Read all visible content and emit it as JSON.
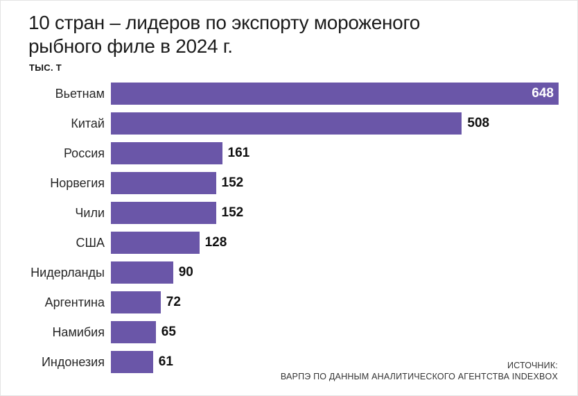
{
  "page": {
    "title_line1": "10 стран – лидеров по экспорту мороженого",
    "title_line2": "рыбного филе в 2024 г.",
    "unit_label": "тыс. т",
    "source_line1": "ИСТОЧНИК:",
    "source_line2": "ВАРПЭ ПО ДАННЫМ АНАЛИТИЧЕСКОГО АГЕНТСТВА INDEXBOX"
  },
  "chart_data": {
    "type": "bar",
    "orientation": "horizontal",
    "title": "10 стран – лидеров по экспорту мороженого рыбного филе в 2024 г.",
    "unit": "тыс. т",
    "categories": [
      "Вьетнам",
      "Китай",
      "Россия",
      "Норвегия",
      "Чили",
      "США",
      "Нидерланды",
      "Аргентина",
      "Намибия",
      "Индонезия"
    ],
    "values": [
      648,
      508,
      161,
      152,
      152,
      128,
      90,
      72,
      65,
      61
    ],
    "xlim": [
      0,
      648
    ],
    "grid": false,
    "legend": false,
    "bar_color": "#6a56a8",
    "value_label_color_inside": "#ffffff",
    "value_label_color_outside": "#0f0f0f",
    "source": "ИСТОЧНИК: ВАРПЭ ПО ДАННЫМ АНАЛИТИЧЕСКОГО АГЕНТСТВА INDEXBOX"
  }
}
